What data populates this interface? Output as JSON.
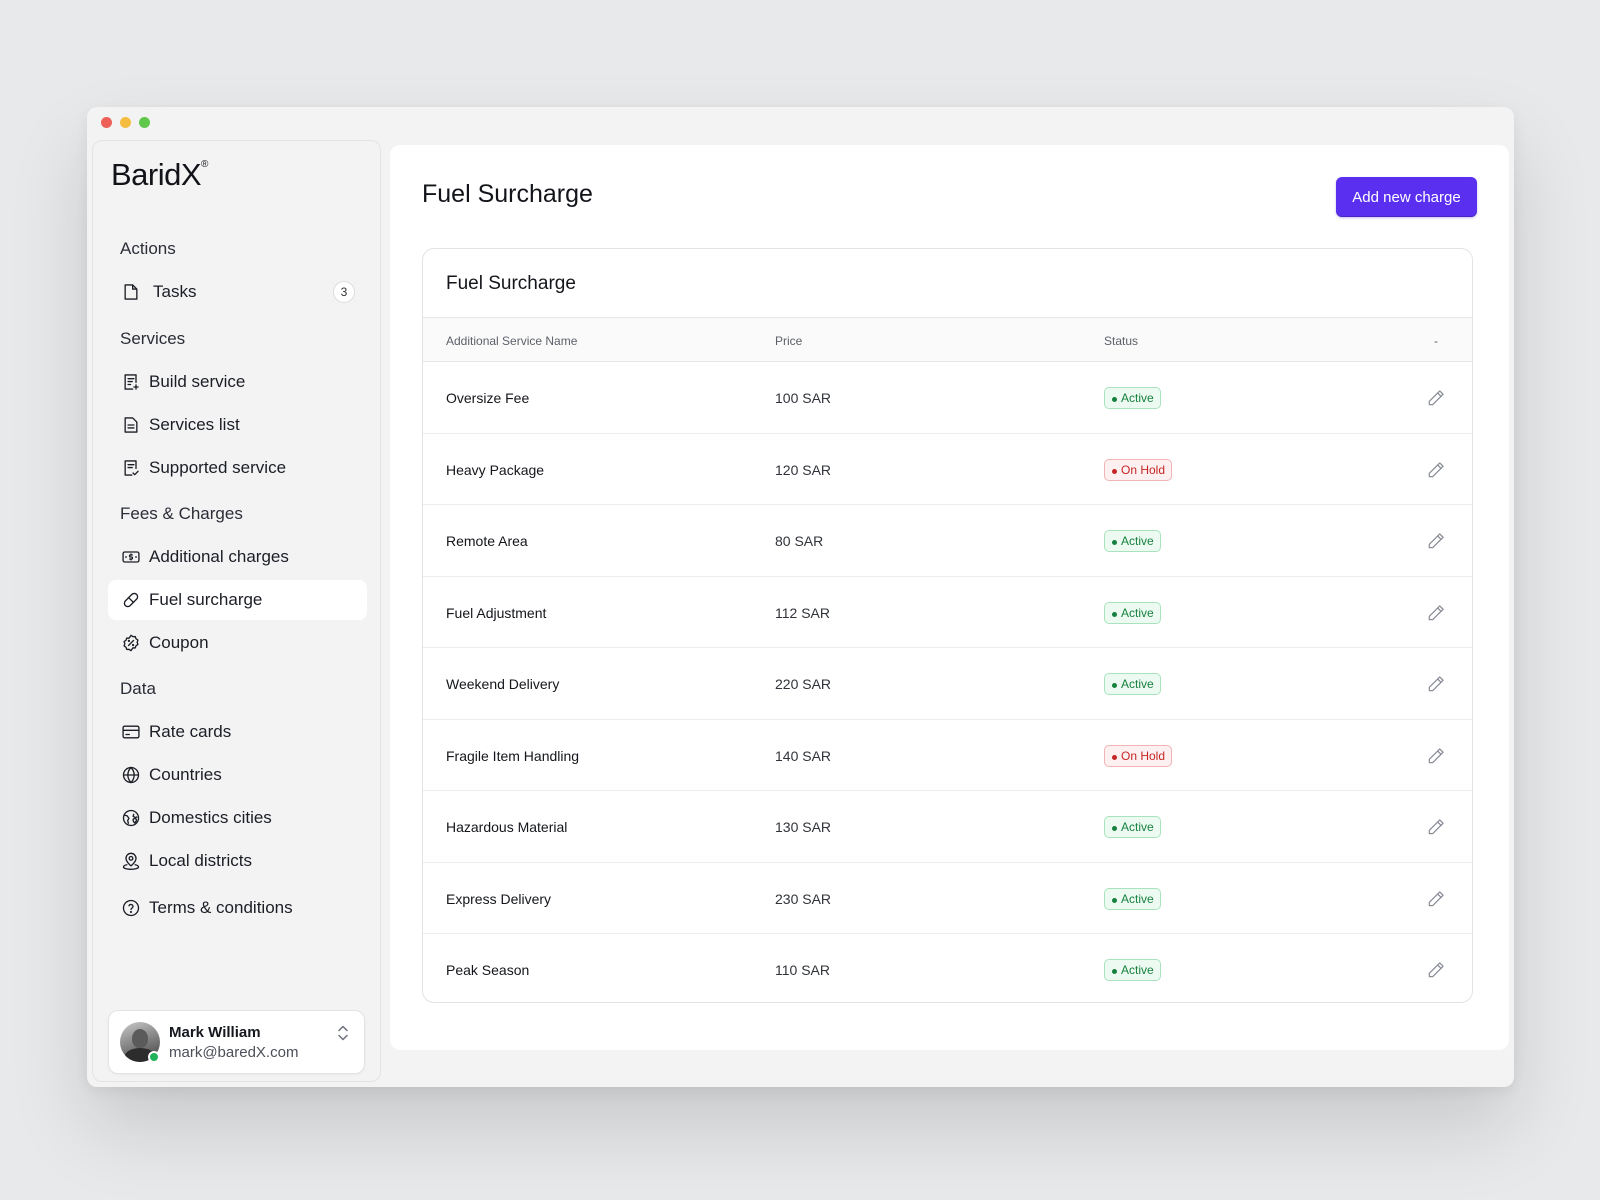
{
  "app": {
    "logo": "BaridX",
    "logo_mark": "®"
  },
  "sidebar": {
    "sections": [
      {
        "label": "Actions"
      },
      {
        "label": "Services"
      },
      {
        "label": "Fees & Charges"
      },
      {
        "label": "Data"
      }
    ],
    "tasks": {
      "label": "Tasks",
      "count": "3",
      "icon": "file-icon"
    },
    "items": [
      {
        "label": "Build service",
        "icon": "receipt-add-icon"
      },
      {
        "label": "Services list",
        "icon": "document-icon"
      },
      {
        "label": "Supported service",
        "icon": "receipt-check-icon"
      },
      {
        "label": "Additional charges",
        "icon": "money-icon"
      },
      {
        "label": "Fuel surcharge",
        "icon": "pill-icon",
        "active": true
      },
      {
        "label": "Coupon",
        "icon": "discount-badge-icon"
      },
      {
        "label": "Rate cards",
        "icon": "card-icon"
      },
      {
        "label": "Countries",
        "icon": "globe-icon"
      },
      {
        "label": "Domestics cities",
        "icon": "globe-pin-icon"
      },
      {
        "label": "Local districts",
        "icon": "user-pin-icon"
      },
      {
        "label": "Terms & conditions",
        "icon": "help-circle-icon"
      }
    ],
    "user": {
      "name": "Mark William",
      "email": "mark@baredX.com",
      "status_color": "#22b35a"
    }
  },
  "main": {
    "title": "Fuel Surcharge",
    "add_button": "Add new charge",
    "accent_color": "#5b2ff0",
    "card_title": "Fuel Surcharge",
    "columns": [
      "Additional Service Name",
      "Price",
      "Status",
      "-"
    ],
    "rows": [
      {
        "name": "Oversize Fee",
        "price": "100 SAR",
        "status": "Active"
      },
      {
        "name": "Heavy Package",
        "price": "120 SAR",
        "status": "On Hold"
      },
      {
        "name": "Remote Area",
        "price": "80 SAR",
        "status": "Active"
      },
      {
        "name": "Fuel Adjustment",
        "price": "112 SAR",
        "status": "Active"
      },
      {
        "name": "Weekend Delivery",
        "price": "220 SAR",
        "status": "Active"
      },
      {
        "name": "Fragile Item Handling",
        "price": "140 SAR",
        "status": "On Hold"
      },
      {
        "name": "Hazardous Material",
        "price": "130 SAR",
        "status": "Active"
      },
      {
        "name": "Express Delivery",
        "price": "230 SAR",
        "status": "Active"
      },
      {
        "name": "Peak Season",
        "price": "110 SAR",
        "status": "Active"
      }
    ],
    "status_colors": {
      "Active": "#16803f",
      "On Hold": "#c62626"
    }
  }
}
